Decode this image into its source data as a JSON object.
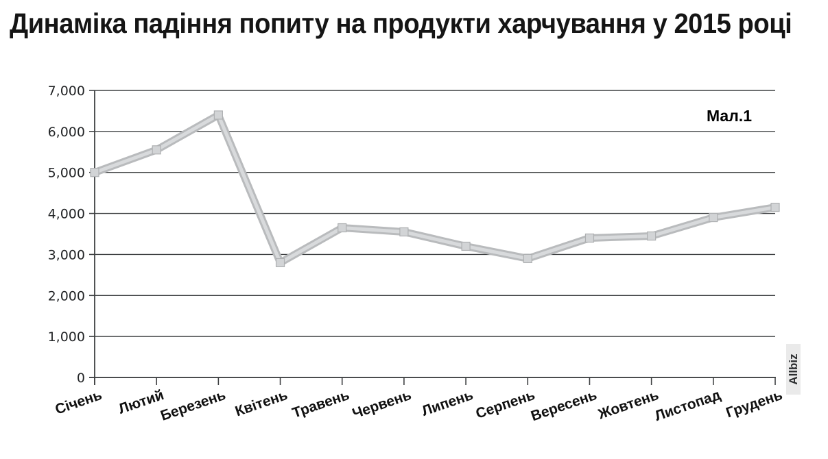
{
  "page": {
    "watermark": "Allbiz"
  },
  "chart_data": {
    "type": "line",
    "title": "Динаміка падіння попиту на продукти харчування у 2015 році",
    "figure_label": "Мал.1",
    "categories": [
      "Січень",
      "Лютий",
      "Березень",
      "Квітень",
      "Травень",
      "Червень",
      "Липень",
      "Серпень",
      "Вересень",
      "Жовтень",
      "Листопад",
      "Грудень"
    ],
    "values": [
      5000,
      5550,
      6400,
      2800,
      3650,
      3550,
      3200,
      2900,
      3400,
      3450,
      3900,
      4150
    ],
    "xlabel": "",
    "ylabel": "",
    "ylim": [
      0,
      7000
    ],
    "y_tick_step": 1000,
    "y_tick_labels": [
      "0",
      "1,000",
      "2,000",
      "3,000",
      "4,000",
      "5,000",
      "6,000",
      "7,000"
    ],
    "grid": true,
    "legend_position": "none",
    "colors": {
      "line": "#b9bbbd",
      "line_highlight": "#d8dadc",
      "marker_fill": "#d2d4d6",
      "marker_edge": "#aeb0b2",
      "grid": "#3e4042",
      "axis": "#3e4042",
      "tick_text": "#232527",
      "label_text": "#111111"
    }
  }
}
